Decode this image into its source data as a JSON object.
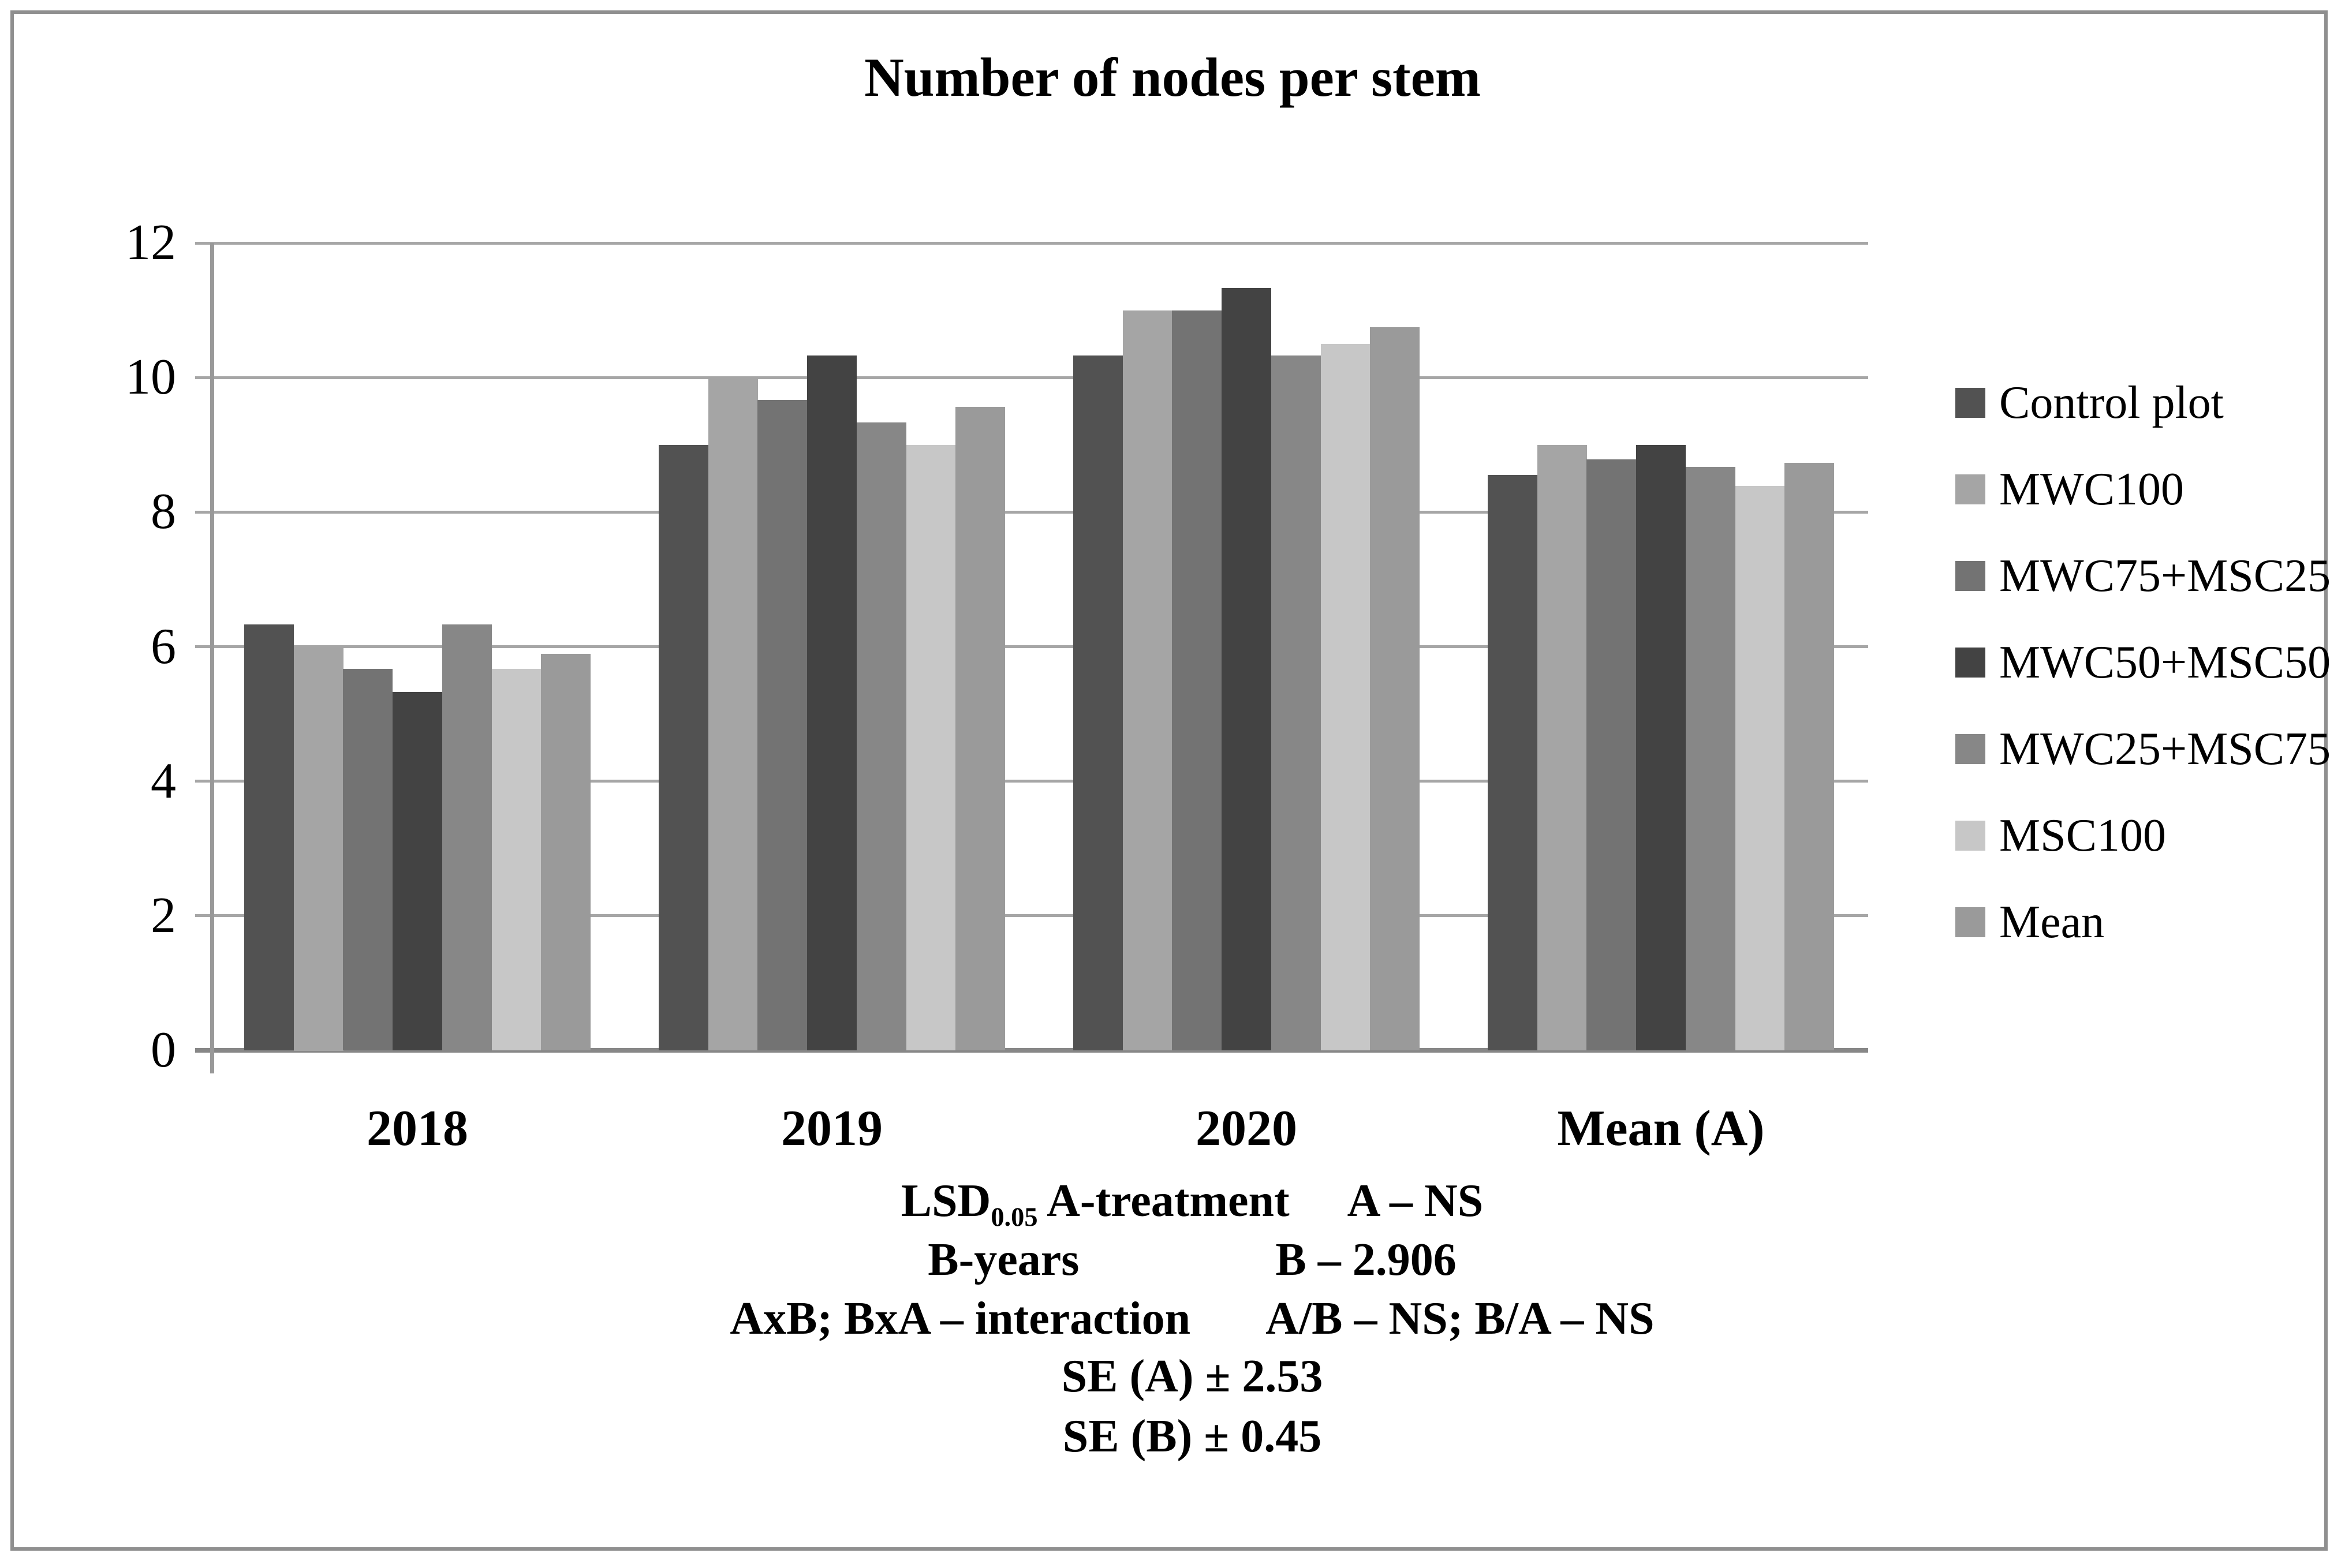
{
  "figure": {
    "title": "Number of nodes per stem",
    "border_color": "#8f8f8f",
    "background": "#ffffff",
    "gridline_color": "#a6a6a6",
    "axis_color": "#878787"
  },
  "chart_data": {
    "type": "bar",
    "title": "Number of nodes per stem",
    "categories": [
      "2018",
      "2019",
      "2020",
      "Mean (A)"
    ],
    "series": [
      {
        "name": "Control plot",
        "color": "#525252",
        "values": [
          6.33,
          9.0,
          10.33,
          8.55
        ]
      },
      {
        "name": "MWC100",
        "color": "#a5a5a5",
        "values": [
          6.0,
          10.0,
          11.0,
          9.0
        ]
      },
      {
        "name": "MWC75+MSC25",
        "color": "#737373",
        "values": [
          5.67,
          9.67,
          11.0,
          8.78
        ]
      },
      {
        "name": "MWC50+MSC50",
        "color": "#434343",
        "values": [
          5.33,
          10.33,
          11.33,
          9.0
        ]
      },
      {
        "name": "MWC25+MSC75",
        "color": "#878787",
        "values": [
          6.33,
          9.33,
          10.33,
          8.67
        ]
      },
      {
        "name": "MSC100",
        "color": "#c7c7c7",
        "values": [
          5.67,
          9.0,
          10.5,
          8.39
        ]
      },
      {
        "name": "Mean",
        "color": "#9a9a9a",
        "values": [
          5.89,
          9.56,
          10.75,
          8.73
        ]
      }
    ],
    "xlabel": "",
    "ylabel": "",
    "ylim": [
      0,
      12
    ],
    "yticks": [
      0,
      2,
      4,
      6,
      8,
      10,
      12
    ],
    "grid": true,
    "legend_position": "right"
  },
  "stats": {
    "lines": [
      {
        "label_main": "LSD",
        "label_sub": "0.05",
        "label_rest": "A-treatment",
        "value": "A – NS"
      },
      {
        "label_main": "B-years",
        "label_sub": "",
        "label_rest": "",
        "value": "B – 2.906"
      },
      {
        "label_main": "AxB; BxA – interaction",
        "label_sub": "",
        "label_rest": "",
        "value": "A/B – NS; B/A – NS"
      },
      {
        "label_main": "SE (A) ± 2.53",
        "label_sub": "",
        "label_rest": "",
        "value": ""
      },
      {
        "label_main": "SE (B) ± 0.45",
        "label_sub": "",
        "label_rest": "",
        "value": ""
      }
    ]
  }
}
